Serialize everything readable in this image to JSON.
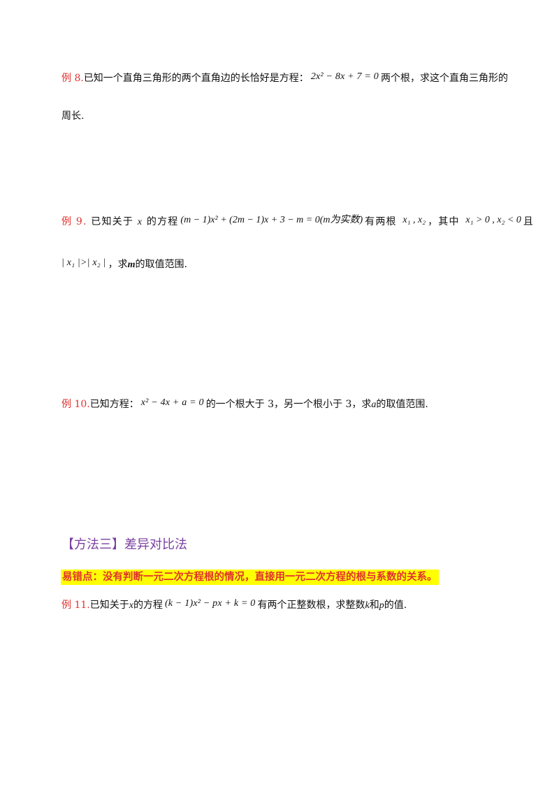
{
  "example8": {
    "label": "例 8.",
    "text_before": "已知一个直角三角形的两个直角边的长恰好是方程：",
    "equation": "2x² − 8x + 7 = 0",
    "text_after": "两个根，求这个直角三角形的",
    "line2": "周长."
  },
  "example9": {
    "label": "例 9.",
    "text_a": "已知关于",
    "var_x": "x",
    "text_b": "的方程",
    "equation": "(m − 1)x² + (2m − 1)x + 3 − m = 0(m为实数)",
    "text_c": "有两根",
    "roots": "x₁ , x₂",
    "text_d": "，其中",
    "cond1": "x₁ > 0 , x₂ < 0",
    "text_e": "且",
    "cond2": "| x₁ |>| x₂ |",
    "text_f": "，求",
    "var_m": "m",
    "text_g": "的取值范围."
  },
  "example10": {
    "label": "例 10.",
    "text_before": "已知方程：",
    "equation": "x² − 4x + a = 0",
    "text_after_1": "的一个根大于 3，另一个根小于 3，求",
    "var_a": "a",
    "text_after_2": "的取值范围."
  },
  "method3": {
    "title": "【方法三】差异对比法",
    "warning": "易错点：没有判断一元二次方程根的情况，直接用一元二次方程的根与系数的关系。"
  },
  "example11": {
    "label": "例 11.",
    "text_a": "已知关于",
    "var_x": "x",
    "text_b": "的方程",
    "equation": "(k − 1)x² − px + k = 0",
    "text_c": "有两个正整数根，求整数",
    "var_k": "k",
    "text_d": "和",
    "var_p": "p",
    "text_e": "的值."
  },
  "colors": {
    "label_red": "#e0322f",
    "method_purple": "#7a3fa0",
    "highlight_yellow": "#ffff00"
  }
}
